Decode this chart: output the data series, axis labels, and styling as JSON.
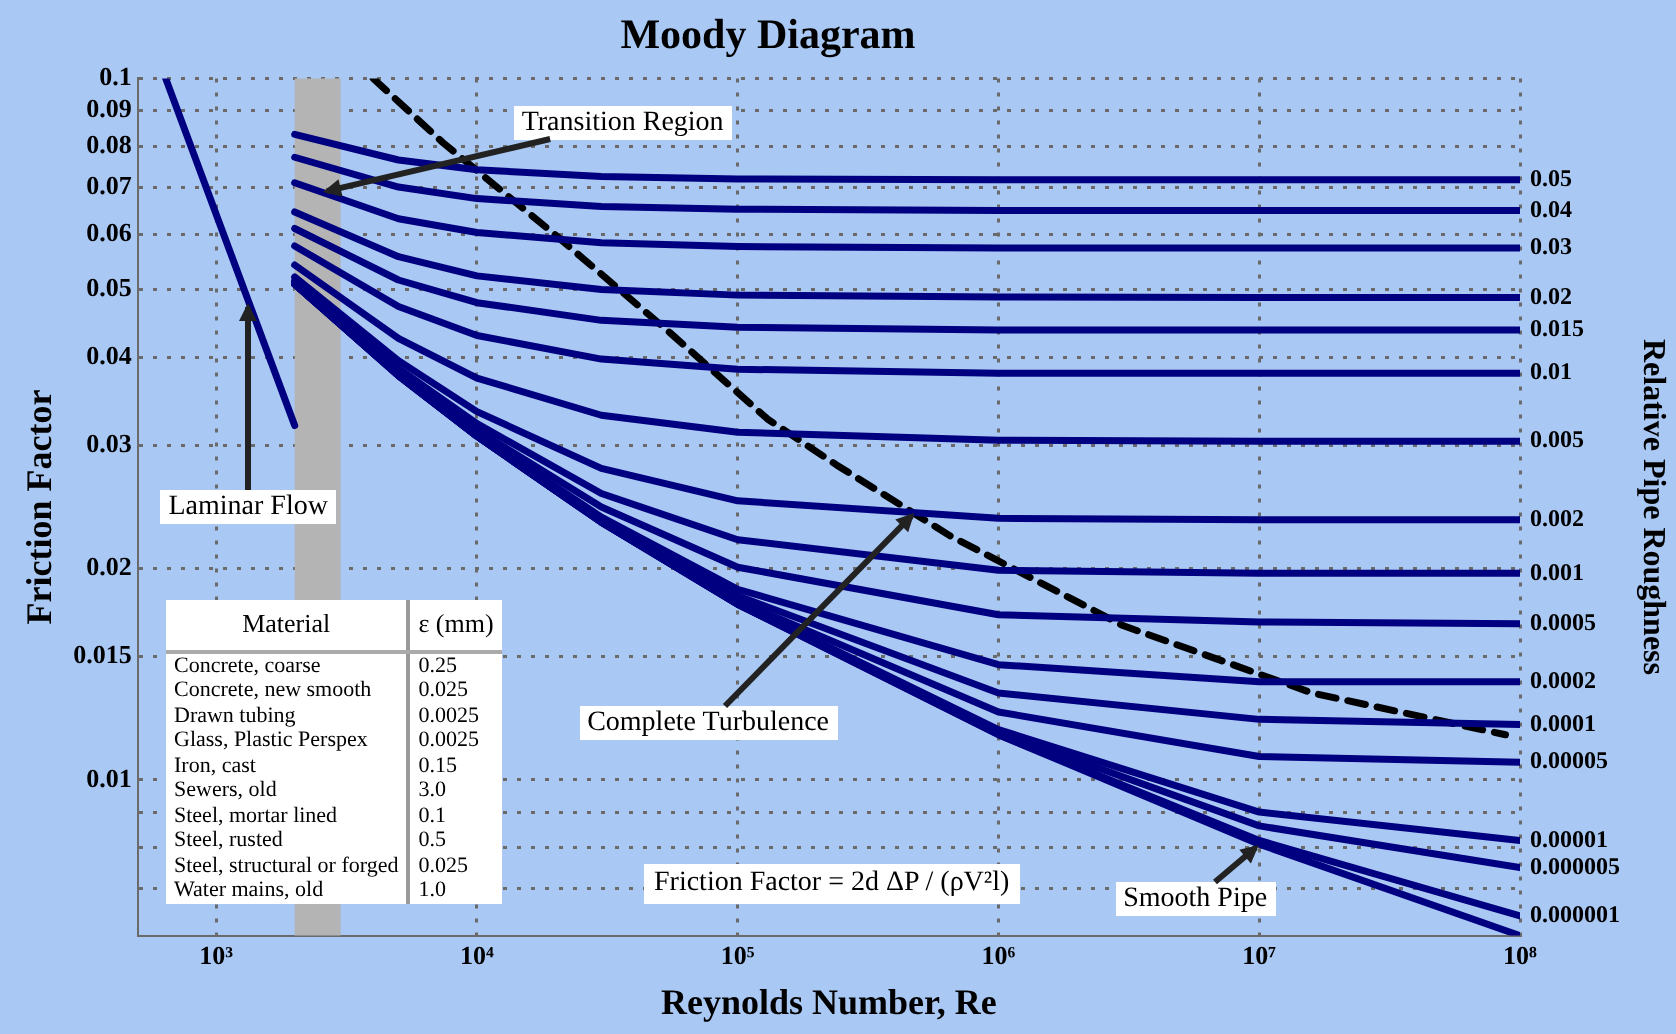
{
  "chart_data": {
    "type": "line",
    "title": "Moody Diagram",
    "xlabel": "Reynolds Number, Re",
    "ylabel": "Friction Factor",
    "y2label": "Relative Pipe Roughness",
    "log": "xy",
    "grid": true,
    "legend": false,
    "marker": "none",
    "xlim": [
      500,
      100000000
    ],
    "xticks": [
      {
        "value": 1000,
        "label": "10³"
      },
      {
        "value": 10000,
        "label": "10⁴"
      },
      {
        "value": 100000,
        "label": "10⁵"
      },
      {
        "value": 1000000,
        "label": "10⁶"
      },
      {
        "value": 10000000,
        "label": "10⁷"
      },
      {
        "value": 100000000,
        "label": "10⁸"
      }
    ],
    "ylim": [
      0.006,
      0.1
    ],
    "yticks": [
      0.1,
      0.09,
      0.08,
      0.07,
      0.06,
      0.05,
      0.04,
      0.03,
      0.02,
      0.015,
      0.01,
      {
        "value": 0.009,
        "label": null
      },
      {
        "value": 0.008,
        "label": null
      },
      {
        "value": 0.007,
        "label": null
      }
    ],
    "x": [
      2000,
      5000,
      10000,
      30000,
      100000,
      1000000,
      10000000,
      100000000
    ],
    "bands": [
      {
        "axis": "x",
        "from": 2000,
        "to": 3000,
        "color": "#b4b4b4"
      }
    ],
    "series": [
      {
        "name": "0.05",
        "color": "#000080",
        "values": [
          0.0832,
          0.0765,
          0.0741,
          0.0725,
          0.0719,
          0.0717,
          0.0717,
          0.0717
        ]
      },
      {
        "name": "0.04",
        "color": "#000080",
        "values": [
          0.0772,
          0.07,
          0.0674,
          0.0657,
          0.0651,
          0.0648,
          0.0648,
          0.0648
        ]
      },
      {
        "name": "0.03",
        "color": "#000080",
        "values": [
          0.071,
          0.0631,
          0.0603,
          0.0583,
          0.0576,
          0.0573,
          0.0573,
          0.0573
        ]
      },
      {
        "name": "0.02",
        "color": "#000080",
        "values": [
          0.0645,
          0.0557,
          0.0523,
          0.05,
          0.0491,
          0.0488,
          0.0487,
          0.0487
        ]
      },
      {
        "name": "0.015",
        "color": "#000080",
        "values": [
          0.0611,
          0.0516,
          0.0479,
          0.0452,
          0.0442,
          0.0438,
          0.0438,
          0.0438
        ]
      },
      {
        "name": "0.01",
        "color": "#000080",
        "values": [
          0.0577,
          0.0473,
          0.043,
          0.0398,
          0.0385,
          0.038,
          0.038,
          0.038
        ]
      },
      {
        "name": "0.005",
        "color": "#000080",
        "values": [
          0.0542,
          0.0426,
          0.0374,
          0.0331,
          0.0313,
          0.0305,
          0.0304,
          0.0304
        ]
      },
      {
        "name": "0.002",
        "color": "#000080",
        "values": [
          0.0521,
          0.0396,
          0.0335,
          0.0278,
          0.025,
          0.0236,
          0.0235,
          0.0235
        ]
      },
      {
        "name": "0.001",
        "color": "#000080",
        "values": [
          0.0515,
          0.0386,
          0.0322,
          0.0256,
          0.022,
          0.0199,
          0.0197,
          0.0197
        ]
      },
      {
        "name": "0.0005",
        "color": "#000080",
        "values": [
          0.0512,
          0.0381,
          0.0315,
          0.0245,
          0.0201,
          0.0172,
          0.0168,
          0.0167
        ]
      },
      {
        "name": "0.0002",
        "color": "#000080",
        "values": [
          0.051,
          0.0379,
          0.0311,
          0.0237,
          0.0187,
          0.0146,
          0.0138,
          0.0138
        ]
      },
      {
        "name": "0.0001",
        "color": "#000080",
        "values": [
          0.0509,
          0.0378,
          0.031,
          0.0235,
          0.0183,
          0.0133,
          0.0122,
          0.012
        ]
      },
      {
        "name": "0.00005",
        "color": "#000080",
        "values": [
          0.0509,
          0.0378,
          0.0309,
          0.0234,
          0.018,
          0.0125,
          0.0108,
          0.0106
        ]
      },
      {
        "name": "0.00001",
        "color": "#000080",
        "values": [
          0.0509,
          0.0377,
          0.0309,
          0.0233,
          0.0179,
          0.0118,
          0.009,
          0.0082
        ]
      },
      {
        "name": "0.000005",
        "color": "#000080",
        "values": [
          0.0509,
          0.0377,
          0.0309,
          0.0233,
          0.0178,
          0.0117,
          0.0086,
          0.0075
        ]
      },
      {
        "name": "0.000001",
        "color": "#000080",
        "values": [
          0.0509,
          0.0377,
          0.0309,
          0.0233,
          0.0178,
          0.0116,
          0.0082,
          0.0064
        ]
      },
      {
        "color": "#000080",
        "values": [
          0.0509,
          0.0377,
          0.0309,
          0.0233,
          0.0178,
          0.0116,
          0.0081,
          0.006
        ]
      },
      {
        "color": "#000080",
        "x": [
          640,
          2000
        ],
        "values": [
          0.1,
          0.032
        ]
      },
      {
        "color": "#000000",
        "line_style": "dashed",
        "x": [
          4000,
          7400,
          20000,
          55000,
          130000,
          240000,
          650000,
          3000000,
          16000000,
          88000000
        ],
        "values": [
          0.1,
          0.081,
          0.0598,
          0.0434,
          0.0327,
          0.0281,
          0.0223,
          0.0166,
          0.0133,
          0.0116
        ]
      }
    ],
    "annotations": [
      {
        "text": "Laminar Flow",
        "x": 1330,
        "y": 0.048
      },
      {
        "text": "Transition Region",
        "x": 2560,
        "y": 0.0687
      },
      {
        "text": "Complete Turbulence",
        "x": 475000,
        "y": 0.024
      },
      {
        "text": "Smooth Pipe",
        "x": 10000000,
        "y": 0.0081
      },
      "Friction Factor = 2d ΔP / (ρV²l)",
      "Material",
      "ε (mm)",
      "Concrete, coarse",
      "0.25",
      "Concrete, new smooth",
      "0.025",
      "Drawn tubing",
      "0.0025",
      "Glass, Plastic Perspex",
      "0.0025",
      "Iron, cast",
      "0.15",
      "Sewers, old",
      "3.0",
      "Steel, mortar lined",
      "0.1",
      "Steel, rusted",
      "0.5",
      "Steel, structural or forged",
      "0.025",
      "Water mains, old",
      "1.0"
    ]
  }
}
